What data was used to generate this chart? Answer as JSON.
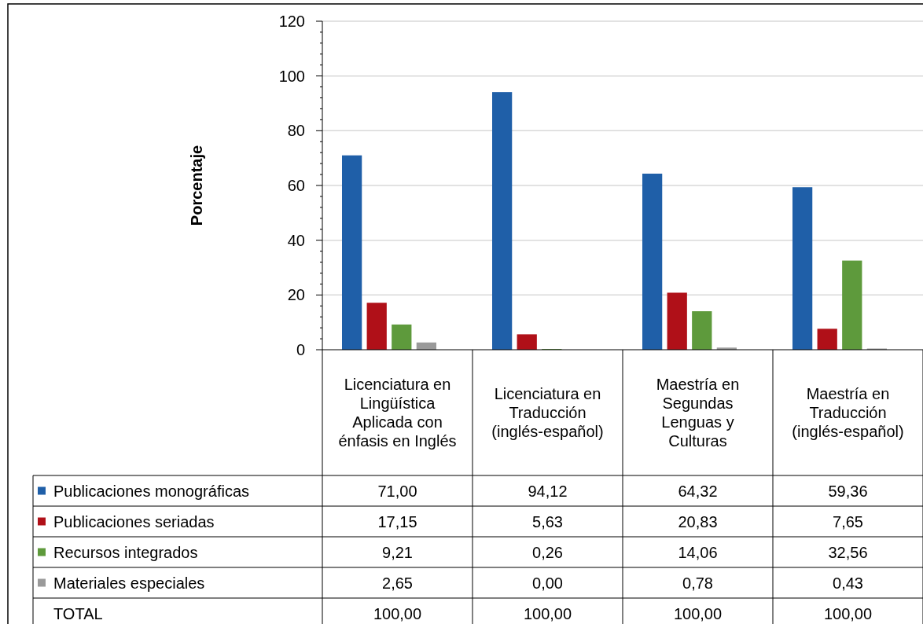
{
  "chart_data": {
    "type": "bar",
    "ylabel": "Porcentaje",
    "categories": [
      "Licenciatura en Lingüística Aplicada con énfasis en Inglés",
      "Licenciatura en Traducción (inglés-español)",
      "Maestría en Segundas Lenguas y Culturas",
      "Maestría en Traducción (inglés-español)"
    ],
    "series": [
      {
        "name": "Publicaciones monográficas",
        "color": "#1f5fa8",
        "values": [
          71.0,
          94.12,
          64.32,
          59.36
        ],
        "value_labels": [
          "71,00",
          "94,12",
          "64,32",
          "59,36"
        ]
      },
      {
        "name": "Publicaciones seriadas",
        "color": "#b01018",
        "values": [
          17.15,
          5.63,
          20.83,
          7.65
        ],
        "value_labels": [
          "17,15",
          "5,63",
          "20,83",
          "7,65"
        ]
      },
      {
        "name": "Recursos integrados",
        "color": "#5e9a3c",
        "values": [
          9.21,
          0.26,
          14.06,
          32.56
        ],
        "value_labels": [
          "9,21",
          "0,26",
          "14,06",
          "32,56"
        ]
      },
      {
        "name": "Materiales especiales",
        "color": "#9a9a9a",
        "values": [
          2.65,
          0.0,
          0.78,
          0.43
        ],
        "value_labels": [
          "2,65",
          "0,00",
          "0,78",
          "0,43"
        ]
      }
    ],
    "annotations": [
      "TOTAL",
      "100,00",
      "100,00",
      "100,00",
      "100,00"
    ],
    "ylim": [
      0,
      120
    ],
    "yticks": [
      0,
      20,
      40,
      60,
      80,
      100,
      120
    ],
    "grid": "y",
    "legend": "bottom"
  }
}
